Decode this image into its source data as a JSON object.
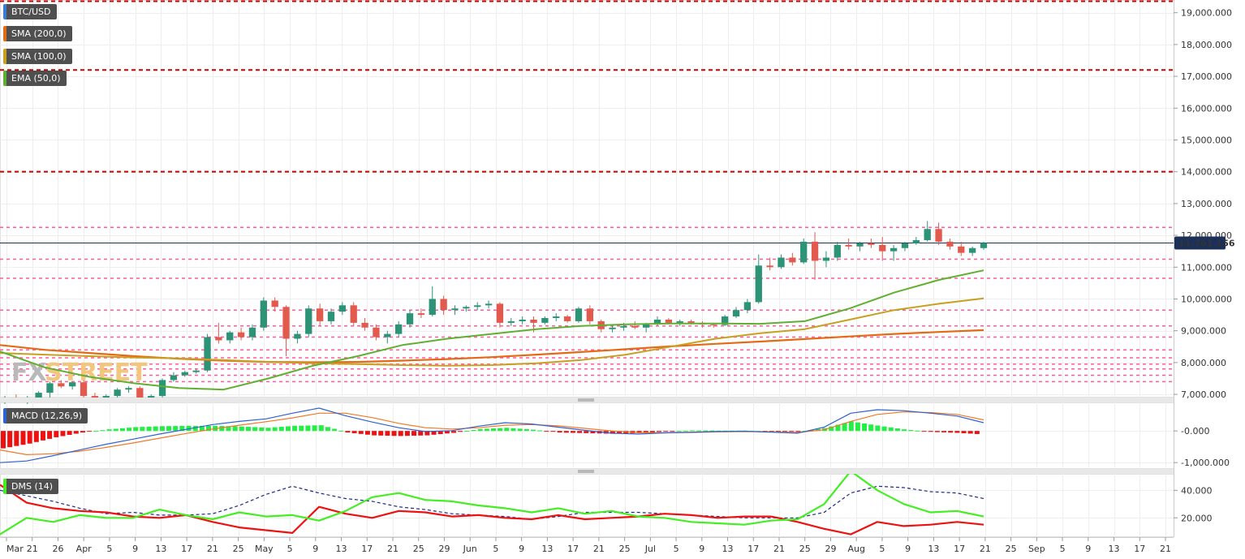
{
  "chart_data": [
    {
      "type": "candlestick",
      "panel": "price",
      "symbol": "BTC/USD",
      "indicators": [
        "SMA (200,0)",
        "SMA (100,0)",
        "EMA (50,0)"
      ],
      "indicator_colors": {
        "SMA (200,0)": "#e36b15",
        "SMA (100,0)": "#c8a020",
        "EMA (50,0)": "#5fb030"
      },
      "ylim": [
        6900000,
        19400000
      ],
      "yticks": [
        {
          "value": 19000000,
          "label": "19,000.000"
        },
        {
          "value": 18000000,
          "label": "18,000.000"
        },
        {
          "value": 17000000,
          "label": "17,000.000"
        },
        {
          "value": 16000000,
          "label": "16,000.000"
        },
        {
          "value": 15000000,
          "label": "15,000.000"
        },
        {
          "value": 14000000,
          "label": "14,000.000"
        },
        {
          "value": 13000000,
          "label": "13,000.000"
        },
        {
          "value": 12000000,
          "label": "12,000.000"
        },
        {
          "value": 11000000,
          "label": "11,000.000"
        },
        {
          "value": 10000000,
          "label": "10,000.000"
        },
        {
          "value": 9000000,
          "label": "9,000.000"
        },
        {
          "value": 8000000,
          "label": "8,000.000"
        },
        {
          "value": 7000000,
          "label": "7,000.000"
        }
      ],
      "last_price": {
        "value": 11761156,
        "label": "11,761.156"
      },
      "resistance_major": [
        19400000,
        17200000,
        14000000
      ],
      "levels_minor": [
        12250000,
        11250000,
        10650000,
        9650000,
        9150000,
        8800000,
        8400000,
        8150000,
        7950000,
        7800000,
        7600000,
        7400000
      ],
      "sma200_y": [
        8550000,
        8400000,
        8300000,
        8200000,
        8120000,
        8060000,
        8020000,
        8010000,
        8020000,
        8060000,
        8110000,
        8170000,
        8250000,
        8330000,
        8420000,
        8510000,
        8590000,
        8660000,
        8740000,
        8820000,
        8900000,
        8960000,
        9020000
      ],
      "sma100_y": [
        8300000,
        8250000,
        8200000,
        8160000,
        8130000,
        8080000,
        8020000,
        7980000,
        7950000,
        7920000,
        7900000,
        7920000,
        7980000,
        8080000,
        8250000,
        8500000,
        8750000,
        8920000,
        9050000,
        9350000,
        9650000,
        9850000,
        10020000
      ],
      "ema50_y": [
        8350000,
        7850000,
        7550000,
        7350000,
        7200000,
        7150000,
        7500000,
        7900000,
        8200000,
        8550000,
        8750000,
        8900000,
        9050000,
        9150000,
        9200000,
        9230000,
        9230000,
        9220000,
        9300000,
        9700000,
        10200000,
        10600000,
        10900000
      ],
      "candles": [
        {
          "o": 6800000,
          "h": 6950000,
          "l": 6700000,
          "c": 6850000
        },
        {
          "o": 6850000,
          "h": 7000000,
          "l": 6750000,
          "c": 6820000
        },
        {
          "o": 6820000,
          "h": 6950000,
          "l": 6700000,
          "c": 6900000
        },
        {
          "o": 6900000,
          "h": 7100000,
          "l": 6800000,
          "c": 7050000
        },
        {
          "o": 7050000,
          "h": 7400000,
          "l": 6900000,
          "c": 7350000
        },
        {
          "o": 7350000,
          "h": 7450000,
          "l": 7200000,
          "c": 7250000
        },
        {
          "o": 7250000,
          "h": 7400000,
          "l": 7150000,
          "c": 7380000
        },
        {
          "o": 7380000,
          "h": 7450000,
          "l": 6900000,
          "c": 6950000
        },
        {
          "o": 6950000,
          "h": 7050000,
          "l": 6800000,
          "c": 6900000
        },
        {
          "o": 6900000,
          "h": 7000000,
          "l": 6750000,
          "c": 6950000
        },
        {
          "o": 6950000,
          "h": 7200000,
          "l": 6900000,
          "c": 7150000
        },
        {
          "o": 7150000,
          "h": 7250000,
          "l": 7050000,
          "c": 7200000
        },
        {
          "o": 7200000,
          "h": 7250000,
          "l": 6850000,
          "c": 6900000
        },
        {
          "o": 6900000,
          "h": 7000000,
          "l": 6800000,
          "c": 6950000
        },
        {
          "o": 6950000,
          "h": 7500000,
          "l": 6900000,
          "c": 7450000
        },
        {
          "o": 7450000,
          "h": 7700000,
          "l": 7400000,
          "c": 7600000
        },
        {
          "o": 7600000,
          "h": 7750000,
          "l": 7550000,
          "c": 7700000
        },
        {
          "o": 7700000,
          "h": 7800000,
          "l": 7650000,
          "c": 7750000
        },
        {
          "o": 7750000,
          "h": 8900000,
          "l": 7700000,
          "c": 8800000
        },
        {
          "o": 8800000,
          "h": 9250000,
          "l": 8600000,
          "c": 8700000
        },
        {
          "o": 8700000,
          "h": 9000000,
          "l": 8600000,
          "c": 8950000
        },
        {
          "o": 8950000,
          "h": 9100000,
          "l": 8700000,
          "c": 8800000
        },
        {
          "o": 8800000,
          "h": 9200000,
          "l": 8700000,
          "c": 9100000
        },
        {
          "o": 9100000,
          "h": 10050000,
          "l": 9000000,
          "c": 9950000
        },
        {
          "o": 9950000,
          "h": 10050000,
          "l": 9600000,
          "c": 9750000
        },
        {
          "o": 9750000,
          "h": 9800000,
          "l": 8200000,
          "c": 8750000
        },
        {
          "o": 8750000,
          "h": 9000000,
          "l": 8600000,
          "c": 8900000
        },
        {
          "o": 8900000,
          "h": 9800000,
          "l": 8800000,
          "c": 9700000
        },
        {
          "o": 9700000,
          "h": 9850000,
          "l": 9150000,
          "c": 9300000
        },
        {
          "o": 9300000,
          "h": 9700000,
          "l": 9200000,
          "c": 9600000
        },
        {
          "o": 9600000,
          "h": 9900000,
          "l": 9500000,
          "c": 9800000
        },
        {
          "o": 9800000,
          "h": 9900000,
          "l": 9150000,
          "c": 9250000
        },
        {
          "o": 9250000,
          "h": 9400000,
          "l": 9000000,
          "c": 9100000
        },
        {
          "o": 9100000,
          "h": 9200000,
          "l": 8700000,
          "c": 8800000
        },
        {
          "o": 8800000,
          "h": 9000000,
          "l": 8600000,
          "c": 8900000
        },
        {
          "o": 8900000,
          "h": 9300000,
          "l": 8800000,
          "c": 9200000
        },
        {
          "o": 9200000,
          "h": 9650000,
          "l": 9100000,
          "c": 9550000
        },
        {
          "o": 9550000,
          "h": 9700000,
          "l": 9400000,
          "c": 9500000
        },
        {
          "o": 9500000,
          "h": 10400000,
          "l": 9450000,
          "c": 10000000
        },
        {
          "o": 10000000,
          "h": 10100000,
          "l": 9500000,
          "c": 9650000
        },
        {
          "o": 9650000,
          "h": 9800000,
          "l": 9500000,
          "c": 9700000
        },
        {
          "o": 9700000,
          "h": 9800000,
          "l": 9600000,
          "c": 9750000
        },
        {
          "o": 9750000,
          "h": 9900000,
          "l": 9650000,
          "c": 9800000
        },
        {
          "o": 9800000,
          "h": 9950000,
          "l": 9700000,
          "c": 9850000
        },
        {
          "o": 9850000,
          "h": 9900000,
          "l": 9100000,
          "c": 9250000
        },
        {
          "o": 9250000,
          "h": 9400000,
          "l": 9150000,
          "c": 9300000
        },
        {
          "o": 9300000,
          "h": 9450000,
          "l": 9200000,
          "c": 9350000
        },
        {
          "o": 9350000,
          "h": 9450000,
          "l": 8950000,
          "c": 9250000
        },
        {
          "o": 9250000,
          "h": 9450000,
          "l": 9200000,
          "c": 9400000
        },
        {
          "o": 9400000,
          "h": 9550000,
          "l": 9300000,
          "c": 9450000
        },
        {
          "o": 9450000,
          "h": 9500000,
          "l": 9250000,
          "c": 9300000
        },
        {
          "o": 9300000,
          "h": 9750000,
          "l": 9250000,
          "c": 9700000
        },
        {
          "o": 9700000,
          "h": 9800000,
          "l": 9200000,
          "c": 9300000
        },
        {
          "o": 9300000,
          "h": 9350000,
          "l": 8950000,
          "c": 9050000
        },
        {
          "o": 9050000,
          "h": 9200000,
          "l": 8950000,
          "c": 9100000
        },
        {
          "o": 9100000,
          "h": 9250000,
          "l": 9000000,
          "c": 9150000
        },
        {
          "o": 9150000,
          "h": 9300000,
          "l": 9050000,
          "c": 9100000
        },
        {
          "o": 9100000,
          "h": 9250000,
          "l": 8950000,
          "c": 9200000
        },
        {
          "o": 9200000,
          "h": 9450000,
          "l": 9150000,
          "c": 9350000
        },
        {
          "o": 9350000,
          "h": 9400000,
          "l": 9200000,
          "c": 9250000
        },
        {
          "o": 9250000,
          "h": 9350000,
          "l": 9150000,
          "c": 9300000
        },
        {
          "o": 9300000,
          "h": 9350000,
          "l": 9200000,
          "c": 9250000
        },
        {
          "o": 9250000,
          "h": 9300000,
          "l": 9100000,
          "c": 9200000
        },
        {
          "o": 9200000,
          "h": 9250000,
          "l": 9100000,
          "c": 9180000
        },
        {
          "o": 9180000,
          "h": 9500000,
          "l": 9150000,
          "c": 9450000
        },
        {
          "o": 9450000,
          "h": 9750000,
          "l": 9400000,
          "c": 9650000
        },
        {
          "o": 9650000,
          "h": 10000000,
          "l": 9550000,
          "c": 9900000
        },
        {
          "o": 9900000,
          "h": 11400000,
          "l": 9850000,
          "c": 11050000
        },
        {
          "o": 11050000,
          "h": 11300000,
          "l": 10900000,
          "c": 11000000
        },
        {
          "o": 11000000,
          "h": 11400000,
          "l": 10950000,
          "c": 11300000
        },
        {
          "o": 11300000,
          "h": 11450000,
          "l": 11050000,
          "c": 11150000
        },
        {
          "o": 11150000,
          "h": 11900000,
          "l": 11100000,
          "c": 11800000
        },
        {
          "o": 11800000,
          "h": 12100000,
          "l": 10600000,
          "c": 11200000
        },
        {
          "o": 11200000,
          "h": 11500000,
          "l": 11000000,
          "c": 11300000
        },
        {
          "o": 11300000,
          "h": 11800000,
          "l": 11200000,
          "c": 11700000
        },
        {
          "o": 11700000,
          "h": 11900000,
          "l": 11550000,
          "c": 11650000
        },
        {
          "o": 11650000,
          "h": 11800000,
          "l": 11500000,
          "c": 11750000
        },
        {
          "o": 11750000,
          "h": 11900000,
          "l": 11600000,
          "c": 11700000
        },
        {
          "o": 11700000,
          "h": 11950000,
          "l": 11200000,
          "c": 11500000
        },
        {
          "o": 11500000,
          "h": 11700000,
          "l": 11200000,
          "c": 11600000
        },
        {
          "o": 11600000,
          "h": 11800000,
          "l": 11500000,
          "c": 11750000
        },
        {
          "o": 11750000,
          "h": 11950000,
          "l": 11700000,
          "c": 11850000
        },
        {
          "o": 11850000,
          "h": 12450000,
          "l": 11800000,
          "c": 12200000
        },
        {
          "o": 12200000,
          "h": 12400000,
          "l": 11700000,
          "c": 11800000
        },
        {
          "o": 11800000,
          "h": 11900000,
          "l": 11550000,
          "c": 11650000
        },
        {
          "o": 11650000,
          "h": 11800000,
          "l": 11350000,
          "c": 11450000
        },
        {
          "o": 11450000,
          "h": 11650000,
          "l": 11350000,
          "c": 11600000
        },
        {
          "o": 11600000,
          "h": 11800000,
          "l": 11550000,
          "c": 11761156
        }
      ]
    },
    {
      "type": "macd",
      "panel": "macd",
      "label": "MACD (12,26,9)",
      "ylim": [
        -1200000,
        900000
      ],
      "yticks": [
        {
          "value": 0,
          "label": "-0.000"
        },
        {
          "value": -1000000,
          "label": "-1,000.000"
        }
      ],
      "macd_y": [
        -1000000,
        -950000,
        -780000,
        -600000,
        -420000,
        -260000,
        -100000,
        50000,
        200000,
        300000,
        380000,
        560000,
        720000,
        480000,
        280000,
        100000,
        -20000,
        10000,
        150000,
        260000,
        220000,
        120000,
        20000,
        -70000,
        -100000,
        -60000,
        -40000,
        -20000,
        -10000,
        -40000,
        -70000,
        120000,
        560000,
        670000,
        640000,
        560000,
        470000,
        260000
      ],
      "signal_y": [
        -600000,
        -750000,
        -720000,
        -640000,
        -520000,
        -380000,
        -230000,
        -80000,
        60000,
        180000,
        290000,
        410000,
        560000,
        560000,
        420000,
        240000,
        100000,
        60000,
        100000,
        180000,
        200000,
        160000,
        80000,
        0,
        -50000,
        -60000,
        -50000,
        -30000,
        -20000,
        -30000,
        -50000,
        40000,
        300000,
        520000,
        600000,
        580000,
        520000,
        350000
      ],
      "histogram_y": [
        -550000,
        -400000,
        -200000,
        -50000,
        50000,
        120000,
        150000,
        160000,
        160000,
        140000,
        100000,
        160000,
        180000,
        -50000,
        -140000,
        -160000,
        -140000,
        -60000,
        60000,
        100000,
        40000,
        -50000,
        -70000,
        -90000,
        -70000,
        -20000,
        20000,
        10000,
        10000,
        -10000,
        -30000,
        90000,
        300000,
        170000,
        50000,
        -30000,
        -60000,
        -110000
      ]
    },
    {
      "type": "line",
      "panel": "dms",
      "label": "DMS (14)",
      "ylim": [
        6000,
        52000
      ],
      "yticks": [
        {
          "value": 40000,
          "label": "40.000"
        },
        {
          "value": 20000,
          "label": "20.000"
        }
      ],
      "plus_di_y": [
        8000,
        20000,
        17000,
        22000,
        20000,
        20000,
        26000,
        22000,
        19000,
        24000,
        21000,
        22000,
        18000,
        25000,
        35000,
        38000,
        33000,
        32000,
        29000,
        27000,
        24000,
        27000,
        23000,
        25000,
        21000,
        20000,
        17000,
        16000,
        15000,
        18000,
        19000,
        30000,
        54000,
        40000,
        30000,
        24000,
        25000,
        21000
      ],
      "minus_di_y": [
        44000,
        31000,
        27000,
        25000,
        24000,
        21000,
        20000,
        22000,
        17000,
        13000,
        11000,
        9000,
        28000,
        23000,
        20000,
        25000,
        24000,
        21000,
        22000,
        20000,
        19000,
        22000,
        19000,
        20000,
        21000,
        23000,
        22000,
        20000,
        21000,
        21000,
        17000,
        12000,
        8000,
        17000,
        14000,
        15000,
        17000,
        15000
      ],
      "adx_y": [
        40000,
        36000,
        32000,
        27000,
        23000,
        24000,
        22000,
        22000,
        23000,
        29000,
        37000,
        43000,
        38000,
        34000,
        32000,
        28000,
        26000,
        23000,
        22000,
        21000,
        19000,
        21000,
        24000,
        24000,
        24000,
        23000,
        22000,
        21000,
        20000,
        20000,
        20000,
        24000,
        38000,
        43000,
        42000,
        39000,
        38000,
        34000
      ]
    }
  ],
  "x_axis": {
    "ticks": [
      "Mar",
      "21",
      "26",
      "Apr",
      "5",
      "9",
      "13",
      "17",
      "21",
      "25",
      "May",
      "5",
      "9",
      "13",
      "17",
      "21",
      "25",
      "29",
      "Jun",
      "5",
      "9",
      "13",
      "17",
      "21",
      "25",
      "Jul",
      "5",
      "9",
      "13",
      "17",
      "21",
      "25",
      "29",
      "Aug",
      "5",
      "9",
      "13",
      "17",
      "21",
      "25",
      "Sep",
      "5",
      "9",
      "13",
      "17",
      "21"
    ]
  },
  "watermark": {
    "part1": "FX",
    "part2": "STREET"
  },
  "colors": {
    "bull": "#2c9376",
    "bear": "#e25a4e",
    "major_level": "#cc0000",
    "minor_level": "#ff5c9d",
    "last_price_line": "#1a2f5a",
    "macd": "#2f61d0",
    "signal": "#f07a27",
    "hist_pos": "#22ee44",
    "hist_neg": "#ee1111",
    "plus_di": "#44ee22",
    "minus_di": "#ee1111",
    "adx": "#1a2a8a"
  }
}
